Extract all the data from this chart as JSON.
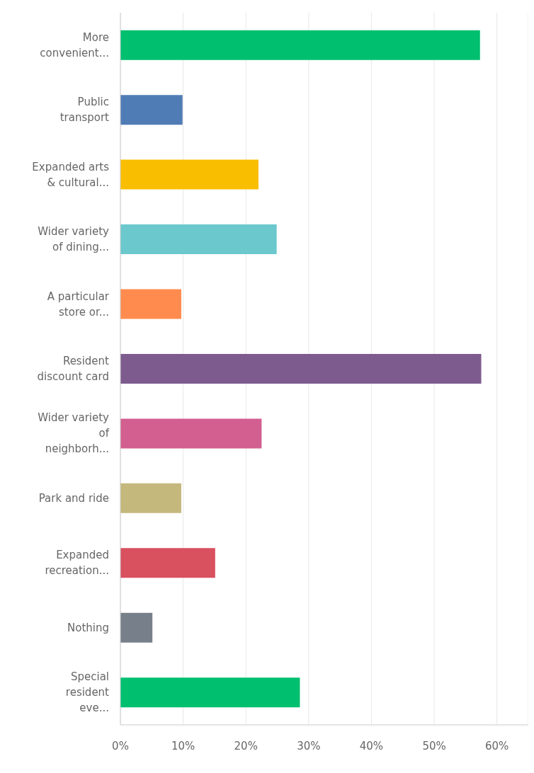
{
  "chart_data": {
    "type": "bar",
    "orientation": "horizontal",
    "categories": [
      "More convenient...",
      "Public transport",
      "Expanded arts & cultural...",
      "Wider variety of dining...",
      "A particular store or...",
      "Resident discount card",
      "Wider variety of neighborh...",
      "Park and ride",
      "Expanded recreation...",
      "Nothing",
      "Special resident eve..."
    ],
    "values": [
      57.3,
      9.9,
      22.0,
      24.9,
      9.7,
      57.5,
      22.5,
      9.7,
      15.1,
      5.1,
      28.6
    ],
    "colors": [
      "#00bf6f",
      "#507cb6",
      "#f9be00",
      "#6bc8cd",
      "#ff8b4f",
      "#7d5b8f",
      "#d25f90",
      "#c5b87c",
      "#d9505f",
      "#77808a",
      "#00bf6f"
    ],
    "xlim": [
      0,
      65
    ],
    "xticks": [
      {
        "value": 0,
        "label": "0%"
      },
      {
        "value": 10,
        "label": "10%"
      },
      {
        "value": 20,
        "label": "20%"
      },
      {
        "value": 30,
        "label": "30%"
      },
      {
        "value": 40,
        "label": "40%"
      },
      {
        "value": 50,
        "label": "50%"
      },
      {
        "value": 60,
        "label": "60%"
      }
    ],
    "grid": "x"
  }
}
